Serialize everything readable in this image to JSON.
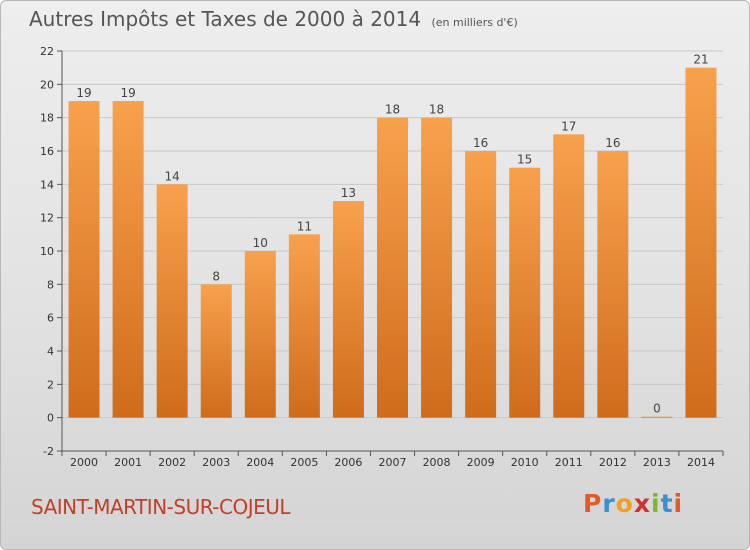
{
  "header": {
    "title": "Autres Impôts et Taxes de 2000 à 2014",
    "subtitle": "(en milliers d'€)"
  },
  "footer": {
    "place_name": "SAINT-MARTIN-SUR-COJEUL",
    "logo_text": "Proxiti",
    "logo_colors": [
      "#e05a2a",
      "#3a8fd0",
      "#f0a020",
      "#d03030",
      "#7cb82a",
      "#3a8fd0",
      "#e05a2a"
    ]
  },
  "colors": {
    "bar_top": "#f8a14d",
    "bar_bottom": "#cf6c1c",
    "axis": "#555555",
    "grid": "#c8c8c8"
  },
  "chart_data": {
    "type": "bar",
    "title": "Autres Impôts et Taxes de 2000 à 2014",
    "xlabel": "",
    "ylabel": "",
    "ylim": [
      -2,
      22
    ],
    "yticks": [
      -2,
      0,
      2,
      4,
      6,
      8,
      10,
      12,
      14,
      16,
      18,
      20,
      22
    ],
    "categories": [
      "2000",
      "2001",
      "2002",
      "2003",
      "2004",
      "2005",
      "2006",
      "2007",
      "2008",
      "2009",
      "2010",
      "2011",
      "2012",
      "2013",
      "2014"
    ],
    "values": [
      19,
      19,
      14,
      8,
      10,
      11,
      13,
      18,
      18,
      16,
      15,
      17,
      16,
      0,
      21
    ],
    "grid": true
  }
}
